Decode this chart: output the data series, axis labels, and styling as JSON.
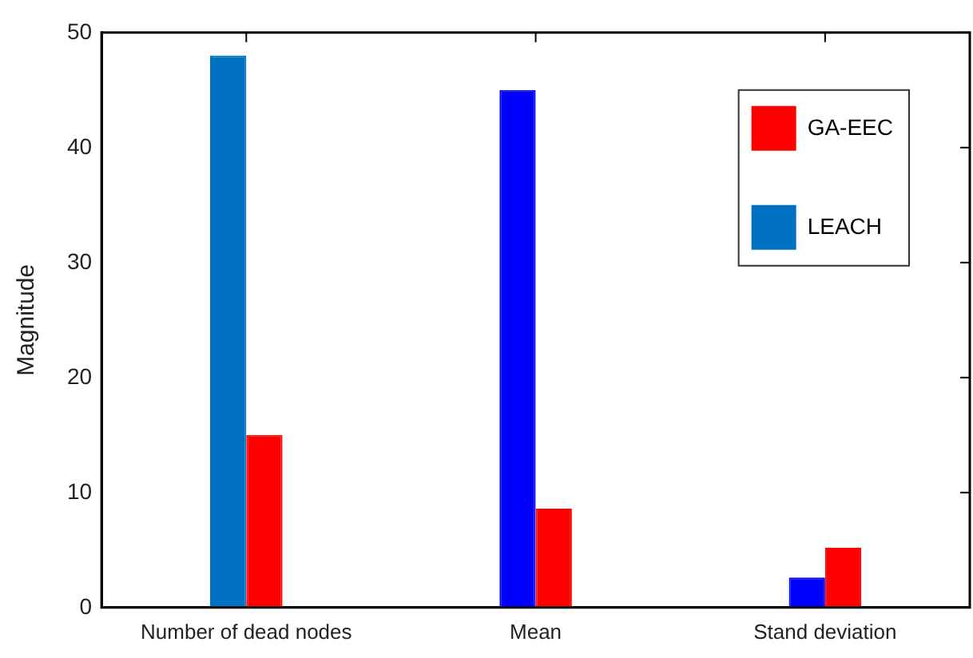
{
  "chart_data": {
    "type": "bar",
    "ylabel": "Magnitude",
    "categories": [
      "Number of dead nodes",
      "Mean",
      "Stand deviation"
    ],
    "series": [
      {
        "name": "LEACH",
        "color": "#0070c0",
        "colors": [
          "#0070c0",
          "#0000ff",
          "#0000ff"
        ],
        "values": [
          48,
          45,
          2.6
        ]
      },
      {
        "name": "GA-EEC",
        "color": "#ff0000",
        "values": [
          15,
          8.6,
          5.2
        ]
      }
    ],
    "ylim": [
      0,
      50
    ],
    "yticks": [
      0,
      10,
      20,
      30,
      40,
      50
    ],
    "grid": false,
    "legend": "top right"
  }
}
